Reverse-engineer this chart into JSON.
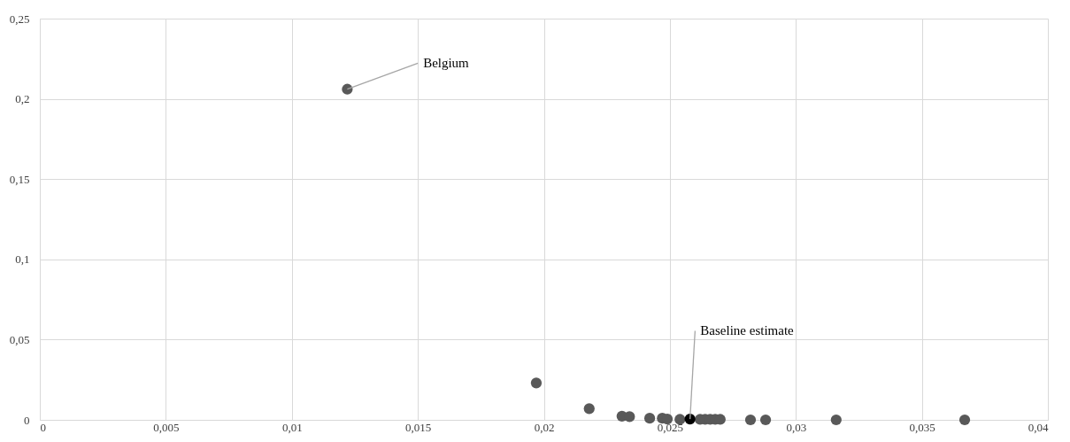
{
  "chart_data": {
    "type": "scatter",
    "series": [
      {
        "color": "#595959",
        "x": [
          0.0122,
          0.0197,
          0.0218,
          0.0231,
          0.0234,
          0.0242,
          0.0247,
          0.0249,
          0.0254,
          0.0262,
          0.0264,
          0.0266,
          0.0268,
          0.027,
          0.0282,
          0.0288,
          0.0316,
          0.0367
        ],
        "values": [
          0.206,
          0.023,
          0.007,
          0.0023,
          0.002,
          0.001,
          0.001,
          0.0005,
          0.0003,
          0.0003,
          0.0003,
          0.0003,
          0.0003,
          0.0003,
          0,
          0,
          0,
          0
        ]
      },
      {
        "color": "#000000",
        "x": [
          0.0258
        ],
        "values": [
          0.0005
        ]
      }
    ],
    "annotations": [
      {
        "text": "Belgium",
        "x": 0.0122,
        "y": 0.206
      },
      {
        "text": "Baseline estimate",
        "x": 0.0258,
        "y": 0.0005
      }
    ],
    "xlim": [
      0,
      0.04
    ],
    "xticks": [
      0,
      {
        "value": 0.005,
        "label": "0,005"
      },
      {
        "value": 0.01,
        "label": "0,01"
      },
      {
        "value": 0.015,
        "label": "0,015"
      },
      {
        "value": 0.02,
        "label": "0,02"
      },
      {
        "value": 0.025,
        "label": "0,025"
      },
      {
        "value": 0.03,
        "label": "0,03"
      },
      {
        "value": 0.035,
        "label": "0,035"
      },
      {
        "value": 0.04,
        "label": "0,04"
      }
    ],
    "ylim": [
      0,
      0.25
    ],
    "yticks": [
      0,
      {
        "value": 0.05,
        "label": "0,05"
      },
      {
        "value": 0.1,
        "label": "0,1"
      },
      {
        "value": 0.15,
        "label": "0,15"
      },
      {
        "value": 0.2,
        "label": "0,2"
      },
      {
        "value": 0.25,
        "label": "0,25"
      }
    ],
    "grid": true,
    "marker": "circle"
  }
}
